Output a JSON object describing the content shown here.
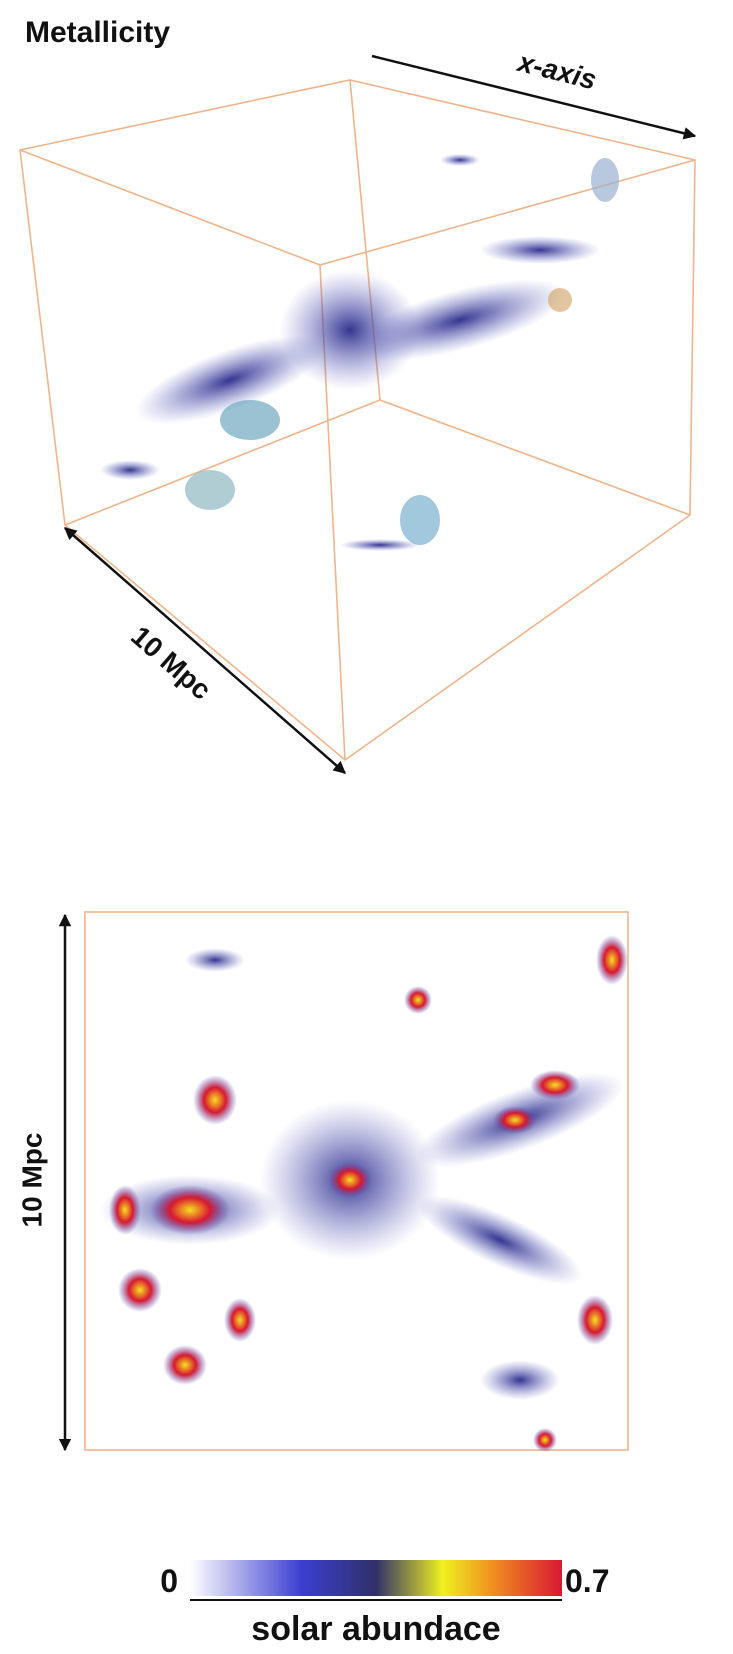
{
  "title": "Metallicity",
  "cube_view": {
    "axis_label": "x-axis",
    "scale_label": "10 Mpc"
  },
  "slice_view": {
    "scale_label": "10 Mpc"
  },
  "colorbar": {
    "min": 0,
    "max": 0.7,
    "label": "solar abundace"
  }
}
